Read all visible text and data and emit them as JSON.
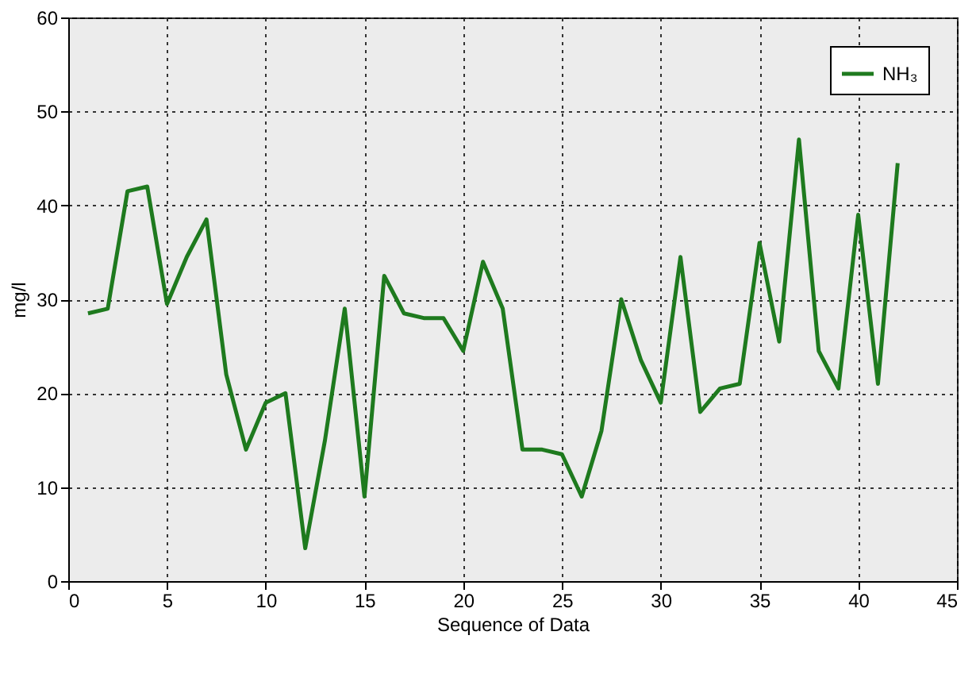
{
  "chart_data": {
    "type": "line",
    "xlabel": "Sequence of Data",
    "ylabel": "mg/l",
    "x": [
      1,
      2,
      3,
      4,
      5,
      6,
      7,
      8,
      9,
      10,
      11,
      12,
      13,
      14,
      15,
      16,
      17,
      18,
      19,
      20,
      21,
      22,
      23,
      24,
      25,
      26,
      27,
      28,
      29,
      30,
      31,
      32,
      33,
      34,
      35,
      36,
      37,
      38,
      39,
      40,
      41,
      42
    ],
    "series": [
      {
        "name": "NH₃",
        "color": "#1e7a1e",
        "values": [
          28.5,
          29,
          41.5,
          42,
          29.5,
          34.5,
          38.5,
          22,
          14,
          19,
          20,
          3.5,
          15,
          29,
          9,
          32.5,
          28.5,
          28,
          28,
          24.5,
          34,
          29,
          14,
          14,
          13.5,
          9,
          16,
          30,
          23.5,
          19,
          34.5,
          18,
          20.5,
          21,
          36,
          25.5,
          47,
          24.5,
          20.5,
          39,
          21,
          44.5
        ]
      }
    ],
    "xlim": [
      0,
      45
    ],
    "xticks": [
      0,
      5,
      10,
      15,
      20,
      25,
      30,
      35,
      40,
      45
    ],
    "ylim": [
      0,
      60
    ],
    "yticks": [
      0,
      10,
      20,
      30,
      40,
      50,
      60
    ],
    "grid": true,
    "legend": "top right",
    "marker": "none",
    "line_style": "solid"
  }
}
